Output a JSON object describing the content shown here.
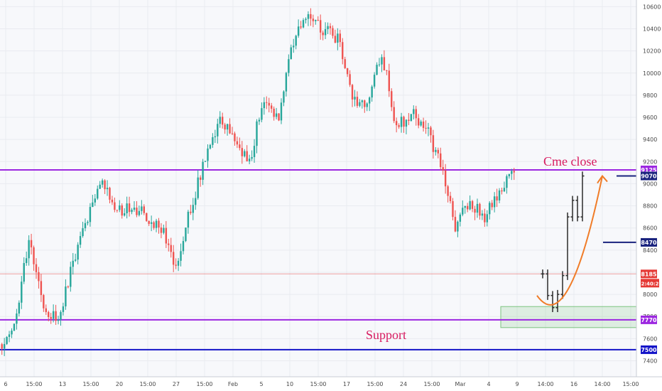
{
  "colors": {
    "background": "#ffffff",
    "plot_bg": "#f7f8fb",
    "grid": "#e9ebf0",
    "up": "#26a69a",
    "down": "#ef5350",
    "purple": "#9c27e0",
    "blue": "#1414c8",
    "navy": "#1a237e",
    "projection": "#2a2a2a",
    "curve": "#f07c28",
    "current_price": "#e53935",
    "annot": "#d81b60"
  },
  "chart_data": {
    "type": "candlestick",
    "ylim": [
      7360,
      10630
    ],
    "y_ticks": [
      "7400",
      "7600",
      "7800",
      "8000",
      "8200",
      "8400",
      "8600",
      "8800",
      "9000",
      "9200",
      "9400",
      "9600",
      "9800",
      "10000",
      "10200",
      "10400",
      "10600"
    ],
    "x_ticks": [
      "6",
      "15:00",
      "13",
      "15:00",
      "20",
      "15:00",
      "27",
      "15:00",
      "Feb",
      "5",
      "10",
      "15:00",
      "17",
      "15:00",
      "24",
      "15:00",
      "Mar",
      "4",
      "9",
      "14:00",
      "16",
      "14:00",
      "15:00"
    ],
    "grid": true,
    "price_path": [
      7550,
      7700,
      8500,
      7900,
      7750,
      8300,
      8700,
      9000,
      8750,
      8800,
      8700,
      8600,
      8250,
      8800,
      9200,
      9550,
      9400,
      9200,
      9800,
      9600,
      10300,
      10550,
      10400,
      10300,
      9800,
      9700,
      10200,
      9500,
      9650,
      9500,
      9200,
      8600,
      8850,
      8700,
      8900,
      9125
    ],
    "projection_closes": [
      8185,
      7990,
      7880,
      8000,
      8170,
      8700,
      8850,
      8700,
      9070
    ],
    "levels": [
      {
        "label": "9125",
        "price": 9125,
        "style": "purple"
      },
      {
        "label": "9070",
        "price": 9070,
        "style": "blue"
      },
      {
        "label": "8470",
        "price": 8470,
        "style": "blue"
      },
      {
        "label": "8185",
        "price": 8185,
        "style": "current"
      },
      {
        "label": "7770",
        "price": 7770,
        "style": "purple"
      },
      {
        "label": "7500",
        "price": 7500,
        "style": "blue"
      }
    ],
    "countdown": "02:40:22",
    "support_zone": [
      7700,
      7890
    ],
    "annotations": {
      "cme_close": "Cme close",
      "support": "Support"
    }
  }
}
